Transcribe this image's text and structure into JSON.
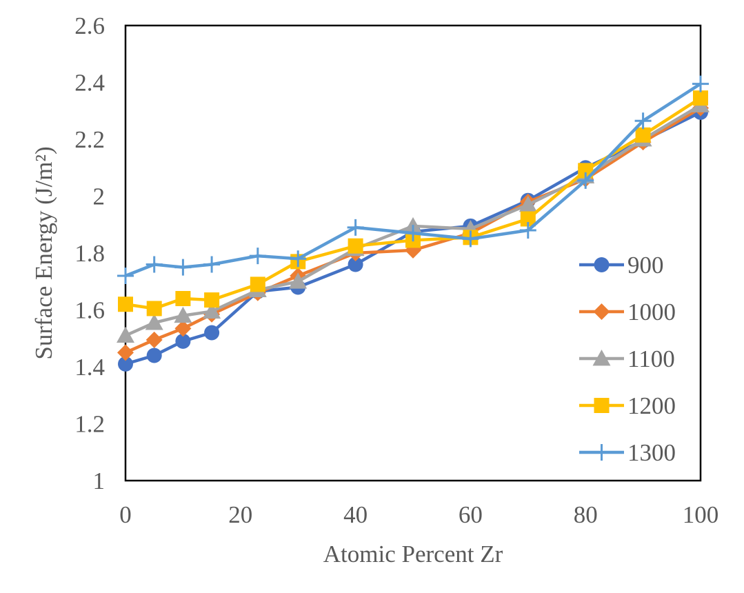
{
  "chart_data": {
    "type": "line",
    "title": "",
    "xlabel": "Atomic Percent Zr",
    "ylabel": "Surface Energy (J/m²)",
    "xlim": [
      0,
      100
    ],
    "ylim": [
      1,
      2.6
    ],
    "xticks": [
      0,
      20,
      40,
      60,
      80,
      100
    ],
    "xtick_labels": [
      "0",
      "20",
      "40",
      "60",
      "80",
      "100"
    ],
    "yticks": [
      1,
      1.2,
      1.4,
      1.6,
      1.8,
      2,
      2.2,
      2.4,
      2.6
    ],
    "ytick_labels": [
      "1",
      "1.2",
      "1.4",
      "1.6",
      "1.8",
      "2",
      "2.2",
      "2.4",
      "2.6"
    ],
    "grid": false,
    "legend_position": "right",
    "series": [
      {
        "name": "900",
        "color": "#4472C4",
        "marker": "circle",
        "points": [
          [
            0,
            1.41
          ],
          [
            5,
            1.44
          ],
          [
            10,
            1.49
          ],
          [
            15,
            1.52
          ],
          [
            23,
            1.665
          ],
          [
            30,
            1.68
          ],
          [
            40,
            1.76
          ],
          [
            50,
            1.875
          ],
          [
            60,
            1.895
          ],
          [
            70,
            1.985
          ],
          [
            80,
            2.1
          ],
          [
            90,
            2.195
          ],
          [
            100,
            2.295
          ]
        ]
      },
      {
        "name": "1000",
        "color": "#ED7D31",
        "marker": "diamond",
        "points": [
          [
            0,
            1.45
          ],
          [
            5,
            1.495
          ],
          [
            10,
            1.535
          ],
          [
            15,
            1.585
          ],
          [
            23,
            1.66
          ],
          [
            30,
            1.72
          ],
          [
            40,
            1.8
          ],
          [
            50,
            1.81
          ],
          [
            60,
            1.87
          ],
          [
            70,
            1.98
          ],
          [
            80,
            2.06
          ],
          [
            90,
            2.19
          ],
          [
            100,
            2.31
          ]
        ]
      },
      {
        "name": "1100",
        "color": "#A5A5A5",
        "marker": "triangle",
        "points": [
          [
            0,
            1.51
          ],
          [
            5,
            1.555
          ],
          [
            10,
            1.58
          ],
          [
            15,
            1.595
          ],
          [
            23,
            1.67
          ],
          [
            30,
            1.7
          ],
          [
            40,
            1.815
          ],
          [
            50,
            1.895
          ],
          [
            60,
            1.885
          ],
          [
            70,
            1.97
          ],
          [
            80,
            2.07
          ],
          [
            90,
            2.2
          ],
          [
            100,
            2.32
          ]
        ]
      },
      {
        "name": "1200",
        "color": "#FFC000",
        "marker": "square",
        "points": [
          [
            0,
            1.62
          ],
          [
            5,
            1.605
          ],
          [
            10,
            1.64
          ],
          [
            15,
            1.635
          ],
          [
            23,
            1.69
          ],
          [
            30,
            1.77
          ],
          [
            40,
            1.825
          ],
          [
            50,
            1.845
          ],
          [
            60,
            1.855
          ],
          [
            70,
            1.92
          ],
          [
            80,
            2.09
          ],
          [
            90,
            2.215
          ],
          [
            100,
            2.345
          ]
        ]
      },
      {
        "name": "1300",
        "color": "#5B9BD5",
        "marker": "plus",
        "points": [
          [
            0,
            1.72
          ],
          [
            5,
            1.76
          ],
          [
            10,
            1.75
          ],
          [
            15,
            1.76
          ],
          [
            23,
            1.79
          ],
          [
            30,
            1.78
          ],
          [
            40,
            1.89
          ],
          [
            50,
            1.87
          ],
          [
            60,
            1.85
          ],
          [
            70,
            1.88
          ],
          [
            80,
            2.055
          ],
          [
            90,
            2.265
          ],
          [
            100,
            2.395
          ]
        ]
      }
    ]
  }
}
